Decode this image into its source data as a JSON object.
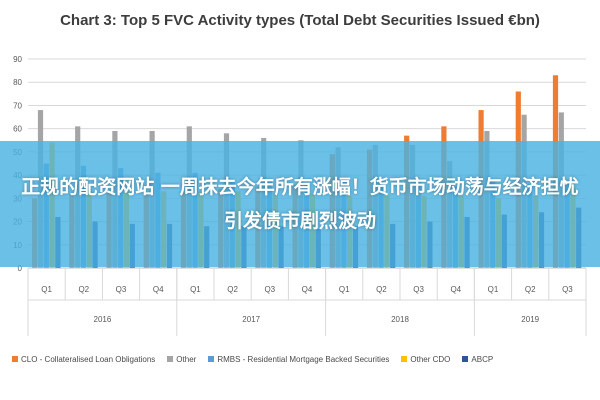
{
  "banner": {
    "text": "正规的配资网站 一周抹去今年所有涨幅！货币市场动荡与经济担忧引发债市剧烈波动"
  },
  "chart_data": {
    "type": "bar",
    "title": "Chart 3: Top 5 FVC Activity types (Total Debt Securities Issued €bn)",
    "xlabel": "",
    "ylabel": "",
    "ylim": [
      0,
      90
    ],
    "yticks": [
      0,
      10,
      20,
      30,
      40,
      50,
      60,
      70,
      80,
      90
    ],
    "grid": true,
    "legend_position": "bottom",
    "categories": [
      "Q1",
      "Q2",
      "Q3",
      "Q4",
      "Q1",
      "Q2",
      "Q3",
      "Q4",
      "Q1",
      "Q2",
      "Q3",
      "Q4",
      "Q1",
      "Q2",
      "Q3"
    ],
    "groups": [
      {
        "label": "2016",
        "span": 4
      },
      {
        "label": "2017",
        "span": 4
      },
      {
        "label": "2018",
        "span": 4
      },
      {
        "label": "2019",
        "span": 3
      }
    ],
    "series": [
      {
        "name": "CLO - Collateralised Loan Obligations",
        "color": "#ee7d31",
        "values": [
          30,
          32,
          33,
          32,
          33,
          34,
          35,
          36,
          49,
          51,
          57,
          61,
          68,
          76,
          83
        ]
      },
      {
        "name": "Other",
        "color": "#a5a5a5",
        "values": [
          68,
          61,
          59,
          59,
          61,
          58,
          56,
          55,
          52,
          53,
          53,
          46,
          59,
          66,
          67
        ]
      },
      {
        "name": "RMBS - Residential Mortgage Backed Securities",
        "color": "#5b9bd5",
        "values": [
          45,
          44,
          43,
          41,
          41,
          38,
          38,
          36,
          39,
          38,
          37,
          35,
          38,
          36,
          37
        ]
      },
      {
        "name": "Other CDO",
        "color": "#ffc000",
        "values": [
          54,
          34,
          33,
          33,
          33,
          33,
          32,
          32,
          31,
          31,
          31,
          31,
          30,
          31,
          35
        ]
      },
      {
        "name": "ABCP",
        "color": "#2f5597",
        "values": [
          22,
          20,
          19,
          19,
          18,
          18,
          18,
          17,
          18,
          19,
          20,
          22,
          23,
          24,
          26
        ]
      }
    ]
  }
}
